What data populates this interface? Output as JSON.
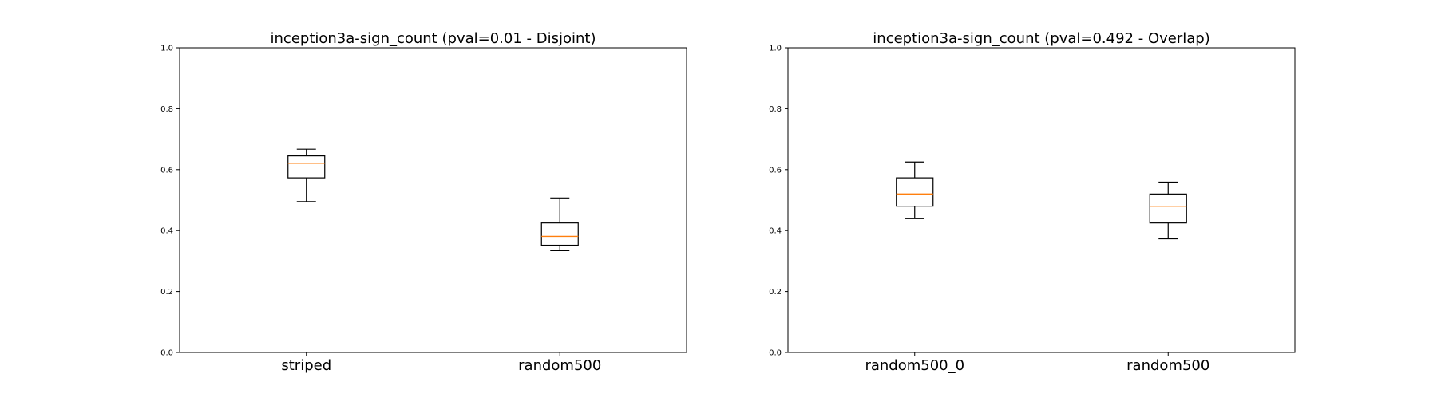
{
  "chart_data": [
    {
      "type": "box",
      "title": "inception3a-sign_count (pval=0.01 - Disjoint)",
      "xlabel": "",
      "ylabel": "",
      "ylim": [
        0.0,
        1.0
      ],
      "yticks": [
        "0.0",
        "0.2",
        "0.4",
        "0.6",
        "0.8",
        "1.0"
      ],
      "grid": false,
      "categories": [
        "striped",
        "random500"
      ],
      "boxes": [
        {
          "label": "striped",
          "whisker_low": 0.495,
          "q1": 0.573,
          "median": 0.621,
          "q3": 0.645,
          "whisker_high": 0.667
        },
        {
          "label": "random500",
          "whisker_low": 0.334,
          "q1": 0.352,
          "median": 0.381,
          "q3": 0.425,
          "whisker_high": 0.507
        }
      ]
    },
    {
      "type": "box",
      "title": "inception3a-sign_count (pval=0.492 - Overlap)",
      "xlabel": "",
      "ylabel": "",
      "ylim": [
        0.0,
        1.0
      ],
      "yticks": [
        "0.0",
        "0.2",
        "0.4",
        "0.6",
        "0.8",
        "1.0"
      ],
      "grid": false,
      "categories": [
        "random500_0",
        "random500"
      ],
      "boxes": [
        {
          "label": "random500_0",
          "whisker_low": 0.439,
          "q1": 0.48,
          "median": 0.52,
          "q3": 0.573,
          "whisker_high": 0.625
        },
        {
          "label": "random500",
          "whisker_low": 0.373,
          "q1": 0.425,
          "median": 0.48,
          "q3": 0.52,
          "whisker_high": 0.559
        }
      ]
    }
  ],
  "colors": {
    "box_edge": "#000000",
    "median": "#ff7f0e",
    "axes": "#000000"
  }
}
